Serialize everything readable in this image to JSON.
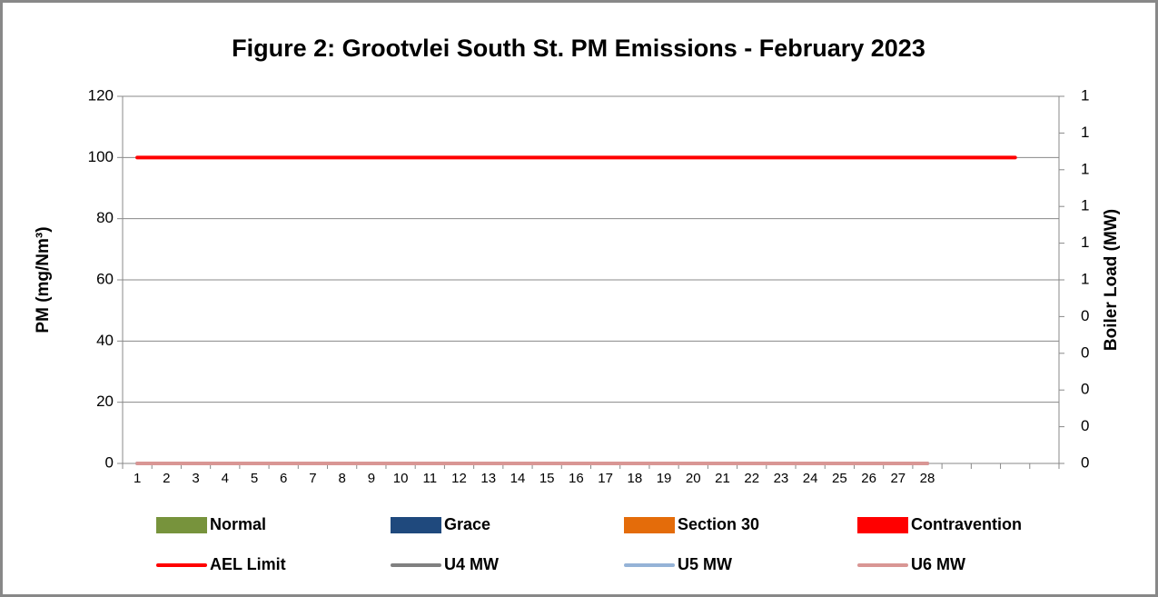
{
  "chart_data": {
    "type": "bar-line",
    "title": "Figure 2: Grootvlei South St. PM Emissions -  February 2023",
    "ylabel": "PM (mg/Nm³)",
    "y2label": "Boiler Load (MW)",
    "categories": [
      "1",
      "2",
      "3",
      "4",
      "5",
      "6",
      "7",
      "8",
      "9",
      "10",
      "11",
      "12",
      "13",
      "14",
      "15",
      "16",
      "17",
      "18",
      "19",
      "20",
      "21",
      "22",
      "23",
      "24",
      "25",
      "26",
      "27",
      "28",
      null,
      null,
      null,
      null
    ],
    "ylim": [
      0,
      120
    ],
    "yticks": [
      0,
      20,
      40,
      60,
      80,
      100,
      120
    ],
    "y2lim": [
      0,
      1
    ],
    "y2ticks": [
      {
        "value": 0,
        "label": "0"
      },
      {
        "value": 0.1,
        "label": "0"
      },
      {
        "value": 0.2,
        "label": "0"
      },
      {
        "value": 0.3,
        "label": "0"
      },
      {
        "value": 0.4,
        "label": "0"
      },
      {
        "value": 0.5,
        "label": "1"
      },
      {
        "value": 0.6,
        "label": "1"
      },
      {
        "value": 0.7,
        "label": "1"
      },
      {
        "value": 0.8,
        "label": "1"
      },
      {
        "value": 0.9,
        "label": "1"
      },
      {
        "value": 1,
        "label": "1"
      }
    ],
    "grid": true,
    "legend": "bottom",
    "series": [
      {
        "name": "Normal",
        "kind": "bar",
        "color": "#77933c",
        "values": [
          0,
          0,
          0,
          0,
          0,
          0,
          0,
          0,
          0,
          0,
          0,
          0,
          0,
          0,
          0,
          0,
          0,
          0,
          0,
          0,
          0,
          0,
          0,
          0,
          0,
          0,
          0,
          0,
          null,
          null,
          null,
          null
        ]
      },
      {
        "name": "Grace",
        "kind": "bar",
        "color": "#1f497d",
        "values": [
          0,
          0,
          0,
          0,
          0,
          0,
          0,
          0,
          0,
          0,
          0,
          0,
          0,
          0,
          0,
          0,
          0,
          0,
          0,
          0,
          0,
          0,
          0,
          0,
          0,
          0,
          0,
          0,
          null,
          null,
          null,
          null
        ]
      },
      {
        "name": "Section 30",
        "kind": "bar",
        "color": "#e46c0a",
        "values": [
          0,
          0,
          0,
          0,
          0,
          0,
          0,
          0,
          0,
          0,
          0,
          0,
          0,
          0,
          0,
          0,
          0,
          0,
          0,
          0,
          0,
          0,
          0,
          0,
          0,
          0,
          0,
          0,
          null,
          null,
          null,
          null
        ]
      },
      {
        "name": "Contravention",
        "kind": "bar",
        "color": "#ff0000",
        "values": [
          0,
          0,
          0,
          0,
          0,
          0,
          0,
          0,
          0,
          0,
          0,
          0,
          0,
          0,
          0,
          0,
          0,
          0,
          0,
          0,
          0,
          0,
          0,
          0,
          0,
          0,
          0,
          0,
          null,
          null,
          null,
          null
        ]
      },
      {
        "name": "AEL Limit",
        "kind": "line",
        "color": "#ff0000",
        "values": [
          100,
          100,
          100,
          100,
          100,
          100,
          100,
          100,
          100,
          100,
          100,
          100,
          100,
          100,
          100,
          100,
          100,
          100,
          100,
          100,
          100,
          100,
          100,
          100,
          100,
          100,
          100,
          100,
          100,
          100,
          100,
          null
        ]
      },
      {
        "name": "U4 MW",
        "kind": "line",
        "axis": "y2",
        "color": "#808080",
        "values": [
          0,
          0,
          0,
          0,
          0,
          0,
          0,
          0,
          0,
          0,
          0,
          0,
          0,
          0,
          0,
          0,
          0,
          0,
          0,
          0,
          0,
          0,
          0,
          0,
          0,
          0,
          0,
          0,
          null,
          null,
          null,
          null
        ]
      },
      {
        "name": "U5 MW",
        "kind": "line",
        "axis": "y2",
        "color": "#95b3d7",
        "values": [
          0,
          0,
          0,
          0,
          0,
          0,
          0,
          0,
          0,
          0,
          0,
          0,
          0,
          0,
          0,
          0,
          0,
          0,
          0,
          0,
          0,
          0,
          0,
          0,
          0,
          0,
          0,
          0,
          null,
          null,
          null,
          null
        ]
      },
      {
        "name": "U6 MW",
        "kind": "line",
        "axis": "y2",
        "color": "#d99694",
        "values": [
          0,
          0,
          0,
          0,
          0,
          0,
          0,
          0,
          0,
          0,
          0,
          0,
          0,
          0,
          0,
          0,
          0,
          0,
          0,
          0,
          0,
          0,
          0,
          0,
          0,
          0,
          0,
          0,
          null,
          null,
          null,
          null
        ]
      }
    ]
  }
}
